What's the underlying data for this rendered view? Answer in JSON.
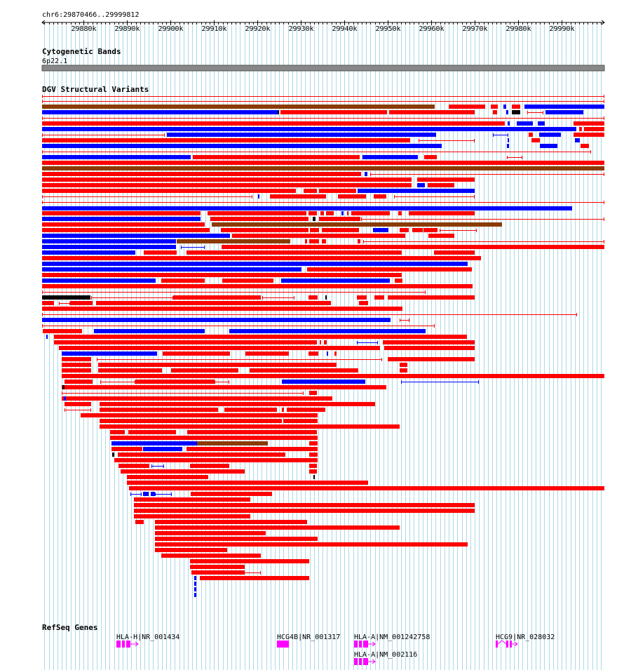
{
  "region": {
    "label": "chr6:29870466..29999812",
    "start": 29870466,
    "end": 29999812
  },
  "ruler": {
    "ticks": [
      "29880k",
      "29890k",
      "29900k",
      "29910k",
      "29920k",
      "29930k",
      "29940k",
      "29950k",
      "29960k",
      "29970k",
      "29980k",
      "29990k"
    ],
    "tick_values": [
      29880000,
      29890000,
      29900000,
      29910000,
      29920000,
      29930000,
      29940000,
      29950000,
      29960000,
      29970000,
      29980000,
      29990000
    ]
  },
  "tracks": {
    "cyto": {
      "title": "Cytogenetic Bands",
      "band": "6p22.1"
    },
    "dgv": {
      "title": "DGV Structural Variants"
    },
    "refseq": {
      "title": "RefSeq Genes",
      "genes": [
        {
          "label": "HLA-H|NR_001434",
          "start": 29888000,
          "end": 29893000
        },
        {
          "label": "HCG4B|NR_001317",
          "start": 29925000,
          "end": 29928000
        },
        {
          "label": "HLA-A|NM_001242758",
          "start": 29942000,
          "end": 29947000
        },
        {
          "label": "HLA-A|NM_002116",
          "start": 29942000,
          "end": 29947000
        },
        {
          "label": "HCG9|NR_028032",
          "start": 29975000,
          "end": 29980000
        }
      ]
    }
  },
  "colors": {
    "loss": "#ff0000",
    "gain": "#0000ff",
    "complex": "#8b3a00",
    "other": "#000000",
    "gene": "#ff00ff",
    "grid": "#add8e6",
    "cyto_band": "#888888"
  }
}
